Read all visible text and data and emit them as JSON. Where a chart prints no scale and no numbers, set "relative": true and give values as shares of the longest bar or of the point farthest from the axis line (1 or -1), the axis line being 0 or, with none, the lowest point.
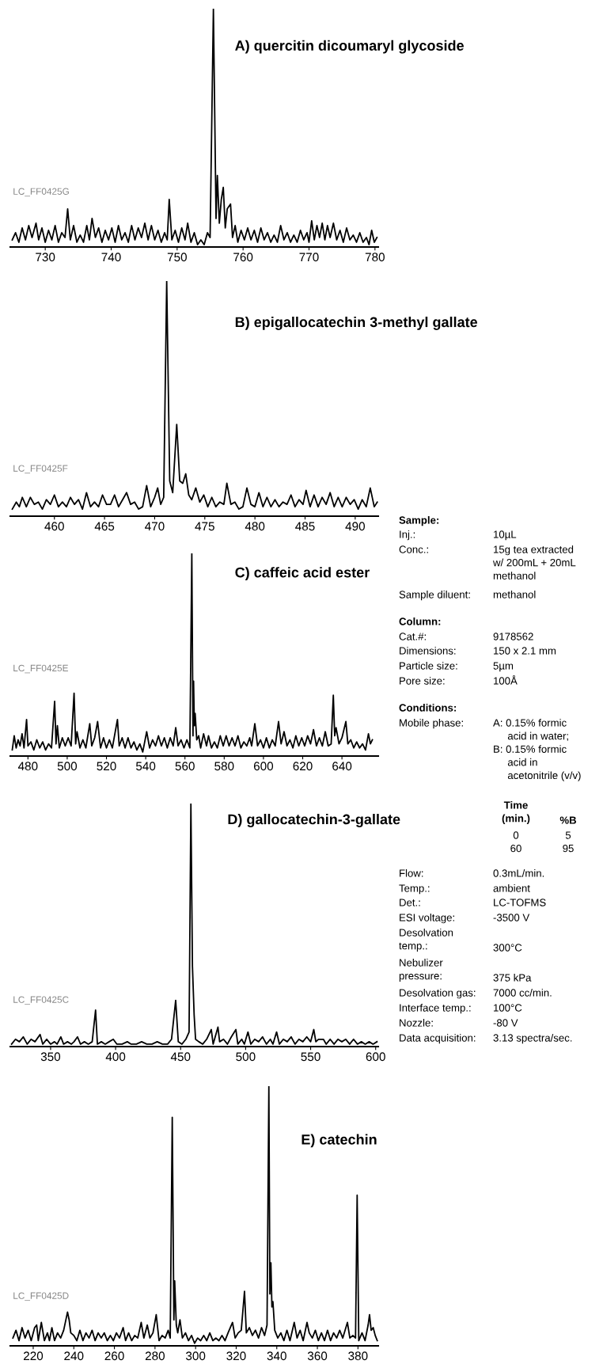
{
  "chart_data": [
    {
      "type": "line",
      "title": "A) quercitin dicoumaryl glycoside",
      "relative": true,
      "tick_labels": "x",
      "xlim": [
        724.7,
        780.5
      ],
      "xticks": [
        730,
        740,
        750,
        760,
        770,
        780
      ],
      "annotations": [
        "LC_FF0425G"
      ],
      "x": [
        725.0,
        725.5,
        726.0,
        726.5,
        727.0,
        727.5,
        728.0,
        728.6,
        729.0,
        729.5,
        730.0,
        730.5,
        731.0,
        731.5,
        732.0,
        732.5,
        733.0,
        733.4,
        733.8,
        734.3,
        734.8,
        735.3,
        735.8,
        736.3,
        736.7,
        737.1,
        737.6,
        738.1,
        738.6,
        739.1,
        739.6,
        740.1,
        740.6,
        741.1,
        741.6,
        742.1,
        742.6,
        743.1,
        743.6,
        744.1,
        744.6,
        745.1,
        745.6,
        746.1,
        746.6,
        747.1,
        747.6,
        748.1,
        748.5,
        748.8,
        749.2,
        749.7,
        750.2,
        750.7,
        751.2,
        751.6,
        752.1,
        752.6,
        753.1,
        753.6,
        754.1,
        754.6,
        755.0,
        755.5,
        755.9,
        756.1,
        756.4,
        756.7,
        757.0,
        757.3,
        757.6,
        758.1,
        758.4,
        758.8,
        759.2,
        759.7,
        760.2,
        760.7,
        761.2,
        761.7,
        762.2,
        762.7,
        763.2,
        763.7,
        764.2,
        764.7,
        765.2,
        765.7,
        766.2,
        766.7,
        767.2,
        767.7,
        768.2,
        768.7,
        769.2,
        769.7,
        770.0,
        770.4,
        770.8,
        771.2,
        771.6,
        772.0,
        772.4,
        772.8,
        773.2,
        773.7,
        774.2,
        774.7,
        775.2,
        775.7,
        776.2,
        776.7,
        777.2,
        777.7,
        778.2,
        778.7,
        779.1,
        779.5,
        779.9,
        780.3
      ],
      "series": [
        {
          "color": "#000000",
          "values": [
            0.03,
            0.06,
            0.02,
            0.08,
            0.03,
            0.09,
            0.04,
            0.1,
            0.03,
            0.08,
            0.02,
            0.07,
            0.03,
            0.09,
            0.02,
            0.06,
            0.04,
            0.16,
            0.03,
            0.09,
            0.02,
            0.05,
            0.02,
            0.09,
            0.03,
            0.12,
            0.04,
            0.08,
            0.02,
            0.07,
            0.03,
            0.08,
            0.02,
            0.09,
            0.03,
            0.06,
            0.02,
            0.09,
            0.03,
            0.08,
            0.04,
            0.1,
            0.03,
            0.09,
            0.03,
            0.07,
            0.02,
            0.06,
            0.03,
            0.2,
            0.03,
            0.07,
            0.02,
            0.08,
            0.03,
            0.1,
            0.02,
            0.06,
            0.01,
            0.03,
            0.01,
            0.06,
            0.04,
            1.0,
            0.12,
            0.3,
            0.1,
            0.2,
            0.25,
            0.08,
            0.16,
            0.18,
            0.04,
            0.09,
            0.02,
            0.07,
            0.03,
            0.08,
            0.03,
            0.07,
            0.02,
            0.08,
            0.03,
            0.06,
            0.02,
            0.05,
            0.02,
            0.09,
            0.03,
            0.06,
            0.02,
            0.05,
            0.02,
            0.07,
            0.03,
            0.06,
            0.02,
            0.11,
            0.03,
            0.09,
            0.04,
            0.1,
            0.03,
            0.09,
            0.04,
            0.1,
            0.03,
            0.07,
            0.02,
            0.08,
            0.03,
            0.05,
            0.02,
            0.06,
            0.02,
            0.04,
            0.01,
            0.07,
            0.02,
            0.04
          ]
        }
      ]
    },
    {
      "type": "line",
      "title": "B) epigallocatechin 3-methyl gallate",
      "relative": true,
      "tick_labels": "x",
      "xlim": [
        455.6,
        492.3
      ],
      "xticks": [
        460,
        465,
        470,
        475,
        480,
        485,
        490
      ],
      "annotations": [
        "LC_FF0425F"
      ],
      "x": [
        455.8,
        456.2,
        456.5,
        456.8,
        457.2,
        457.6,
        458.0,
        458.4,
        458.8,
        459.2,
        459.6,
        460.0,
        460.4,
        460.8,
        461.2,
        461.6,
        462.0,
        462.4,
        462.8,
        463.2,
        463.6,
        464.0,
        464.4,
        464.8,
        465.2,
        465.6,
        466.0,
        466.4,
        466.8,
        467.2,
        467.6,
        468.0,
        468.4,
        468.8,
        469.2,
        469.6,
        470.0,
        470.3,
        470.6,
        470.9,
        471.2,
        471.5,
        471.8,
        472.2,
        472.5,
        472.8,
        473.1,
        473.4,
        473.7,
        474.1,
        474.5,
        474.9,
        475.3,
        475.7,
        476.1,
        476.5,
        476.9,
        477.2,
        477.6,
        478.0,
        478.4,
        478.8,
        479.2,
        479.6,
        480.0,
        480.4,
        480.8,
        481.2,
        481.6,
        482.0,
        482.4,
        482.8,
        483.2,
        483.6,
        484.0,
        484.4,
        484.8,
        485.1,
        485.5,
        485.9,
        486.3,
        486.7,
        487.1,
        487.5,
        487.9,
        488.3,
        488.7,
        489.1,
        489.5,
        489.9,
        490.3,
        490.7,
        491.1,
        491.5,
        491.9,
        492.2
      ],
      "series": [
        {
          "color": "#000000",
          "values": [
            0.03,
            0.06,
            0.04,
            0.08,
            0.04,
            0.08,
            0.05,
            0.06,
            0.03,
            0.07,
            0.05,
            0.09,
            0.04,
            0.06,
            0.04,
            0.08,
            0.05,
            0.07,
            0.03,
            0.1,
            0.04,
            0.06,
            0.04,
            0.09,
            0.05,
            0.05,
            0.09,
            0.04,
            0.07,
            0.1,
            0.05,
            0.06,
            0.03,
            0.04,
            0.13,
            0.04,
            0.08,
            0.12,
            0.05,
            0.08,
            1.0,
            0.15,
            0.1,
            0.39,
            0.15,
            0.14,
            0.18,
            0.09,
            0.07,
            0.12,
            0.06,
            0.09,
            0.04,
            0.08,
            0.04,
            0.06,
            0.05,
            0.14,
            0.05,
            0.06,
            0.03,
            0.04,
            0.12,
            0.05,
            0.04,
            0.1,
            0.04,
            0.08,
            0.04,
            0.07,
            0.04,
            0.06,
            0.05,
            0.09,
            0.04,
            0.07,
            0.05,
            0.11,
            0.04,
            0.09,
            0.04,
            0.08,
            0.05,
            0.1,
            0.04,
            0.08,
            0.04,
            0.08,
            0.05,
            0.07,
            0.03,
            0.07,
            0.04,
            0.12,
            0.04,
            0.06
          ]
        }
      ]
    },
    {
      "type": "line",
      "title": "C) caffeic acid ester",
      "relative": true,
      "tick_labels": "x",
      "xlim": [
        471,
        658.5
      ],
      "xticks": [
        480,
        500,
        520,
        540,
        560,
        580,
        600,
        620,
        640
      ],
      "annotations": [
        "LC_FF0425E"
      ],
      "x": [
        472,
        473,
        474,
        475,
        476,
        477,
        478,
        479.3,
        480,
        481.5,
        483,
        484.5,
        486,
        487.5,
        489,
        490.5,
        492,
        493.6,
        494.3,
        495,
        496,
        497.5,
        499,
        500.5,
        502,
        503.5,
        504.3,
        505,
        506.5,
        508,
        509.5,
        511.5,
        512.5,
        514,
        515.5,
        517,
        518.5,
        520,
        521.5,
        523,
        525.6,
        526.5,
        528,
        529.5,
        531,
        532.5,
        534,
        535.5,
        537,
        538.5,
        540.5,
        542,
        543.5,
        545,
        546.5,
        548,
        549.5,
        551,
        552.5,
        554,
        555.3,
        556.5,
        558,
        559.5,
        561,
        562.5,
        563.5,
        564.1,
        564.4,
        564.8,
        565.2,
        566,
        567,
        568,
        569.5,
        571,
        572,
        573.5,
        575,
        576.5,
        578,
        579.5,
        581,
        582.5,
        584,
        585.5,
        587,
        588.5,
        590,
        591.5,
        593,
        594,
        595.6,
        597,
        598.5,
        600,
        601.5,
        603,
        604.5,
        606,
        607.7,
        609,
        610.5,
        612,
        613.5,
        615,
        616.5,
        618,
        619.5,
        621,
        622.5,
        624,
        625.5,
        627,
        628.5,
        630,
        631.5,
        633,
        634.5,
        635.6,
        636.3,
        637,
        638.5,
        640,
        642,
        643,
        644.5,
        646,
        647.5,
        649,
        650.5,
        652,
        653.5,
        654.5,
        655.5
      ],
      "series": [
        {
          "color": "#000000",
          "values": [
            0.03,
            0.1,
            0.04,
            0.08,
            0.05,
            0.11,
            0.04,
            0.18,
            0.05,
            0.07,
            0.03,
            0.08,
            0.04,
            0.07,
            0.03,
            0.06,
            0.04,
            0.27,
            0.06,
            0.15,
            0.04,
            0.09,
            0.05,
            0.09,
            0.05,
            0.31,
            0.06,
            0.12,
            0.04,
            0.08,
            0.04,
            0.16,
            0.05,
            0.09,
            0.17,
            0.04,
            0.09,
            0.04,
            0.08,
            0.04,
            0.18,
            0.05,
            0.09,
            0.04,
            0.09,
            0.04,
            0.07,
            0.03,
            0.06,
            0.02,
            0.12,
            0.04,
            0.08,
            0.05,
            0.1,
            0.05,
            0.09,
            0.04,
            0.09,
            0.05,
            0.14,
            0.05,
            0.08,
            0.04,
            0.08,
            0.04,
            1.0,
            0.1,
            0.37,
            0.15,
            0.21,
            0.08,
            0.1,
            0.04,
            0.11,
            0.05,
            0.1,
            0.04,
            0.07,
            0.04,
            0.1,
            0.05,
            0.1,
            0.05,
            0.09,
            0.05,
            0.1,
            0.04,
            0.07,
            0.05,
            0.09,
            0.05,
            0.16,
            0.05,
            0.08,
            0.04,
            0.09,
            0.04,
            0.08,
            0.05,
            0.17,
            0.06,
            0.12,
            0.05,
            0.08,
            0.04,
            0.1,
            0.05,
            0.09,
            0.05,
            0.1,
            0.06,
            0.13,
            0.05,
            0.09,
            0.05,
            0.12,
            0.05,
            0.06,
            0.3,
            0.1,
            0.14,
            0.06,
            0.09,
            0.17,
            0.06,
            0.08,
            0.04,
            0.07,
            0.04,
            0.06,
            0.03,
            0.11,
            0.06,
            0.08
          ]
        }
      ]
    },
    {
      "type": "line",
      "title": "D) gallocatechin-3-gallate",
      "relative": true,
      "tick_labels": "x",
      "xlim": [
        319,
        602
      ],
      "xticks": [
        350,
        400,
        450,
        500,
        550,
        600
      ],
      "annotations": [
        "LC_FF0425C"
      ],
      "x": [
        320,
        323,
        326,
        329,
        332,
        335,
        338,
        341.9,
        344,
        347,
        350,
        353,
        355,
        357.9,
        360,
        363,
        366,
        368,
        370.7,
        373,
        376,
        379,
        382,
        384.6,
        386,
        389,
        392,
        395,
        398.2,
        401,
        405,
        409,
        412,
        416,
        420,
        424,
        428,
        432,
        436,
        440,
        443,
        446.2,
        448.2,
        451,
        454,
        456.5,
        457.9,
        459.1,
        460.4,
        461.5,
        464,
        467,
        470,
        473.6,
        475,
        478.7,
        480,
        483,
        486,
        489,
        492.5,
        494,
        497,
        499,
        501.8,
        504,
        507,
        510,
        513,
        516,
        519,
        521,
        523.8,
        526,
        529,
        532,
        535,
        538,
        541,
        544,
        547,
        550,
        552.4,
        554,
        556,
        559.8,
        562,
        565,
        568,
        571,
        574,
        577,
        580,
        583,
        586,
        589,
        592,
        595,
        598,
        601
      ],
      "series": [
        {
          "color": "#000000",
          "values": [
            0.01,
            0.03,
            0.02,
            0.04,
            0.01,
            0.03,
            0.02,
            0.05,
            0.01,
            0.03,
            0.01,
            0.02,
            0.01,
            0.04,
            0.01,
            0.02,
            0.01,
            0.02,
            0.04,
            0.01,
            0.02,
            0.01,
            0.02,
            0.15,
            0.01,
            0.02,
            0.01,
            0.02,
            0.03,
            0.01,
            0.01,
            0.02,
            0.01,
            0.01,
            0.02,
            0.01,
            0.01,
            0.02,
            0.01,
            0.01,
            0.03,
            0.19,
            0.02,
            0.01,
            0.03,
            0.06,
            1.0,
            0.33,
            0.13,
            0.03,
            0.02,
            0.01,
            0.03,
            0.07,
            0.01,
            0.08,
            0.02,
            0.03,
            0.01,
            0.04,
            0.07,
            0.01,
            0.03,
            0.01,
            0.06,
            0.01,
            0.03,
            0.02,
            0.04,
            0.01,
            0.03,
            0.01,
            0.06,
            0.01,
            0.03,
            0.02,
            0.04,
            0.01,
            0.03,
            0.02,
            0.04,
            0.02,
            0.07,
            0.02,
            0.03,
            0.03,
            0.01,
            0.03,
            0.01,
            0.03,
            0.02,
            0.03,
            0.01,
            0.03,
            0.01,
            0.02,
            0.01,
            0.02,
            0.01,
            0.02
          ]
        }
      ]
    },
    {
      "type": "line",
      "title": "E) catechin",
      "relative": true,
      "tick_labels": "x",
      "xlim": [
        208.7,
        390
      ],
      "xticks": [
        220,
        240,
        260,
        280,
        300,
        320,
        340,
        360,
        380
      ],
      "annotations": [
        "LC_FF0425D"
      ],
      "x": [
        210,
        211.5,
        213,
        214.5,
        216,
        217.5,
        219,
        220.7,
        221.7,
        222.5,
        224,
        225.5,
        227,
        228,
        229.2,
        230.5,
        232,
        233.5,
        235,
        236.9,
        237.7,
        238.5,
        240,
        241.5,
        243,
        244.5,
        246,
        247.5,
        249,
        250.5,
        252,
        253.5,
        255,
        256.5,
        258,
        259.5,
        261,
        262.5,
        264.3,
        265.5,
        267,
        268.5,
        270,
        271.5,
        273.2,
        274.5,
        276.2,
        277.5,
        279,
        280.6,
        282,
        283.5,
        285,
        286.5,
        287.5,
        288.5,
        289.3,
        289.7,
        290.5,
        291.2,
        292.3,
        293.5,
        295,
        296.5,
        298,
        299.5,
        301,
        302.5,
        304,
        305.5,
        307,
        308.5,
        310,
        311.5,
        313,
        314.5,
        316,
        318.2,
        319.5,
        321,
        322.5,
        324.1,
        325,
        326.5,
        328,
        329.5,
        331,
        332.5,
        334,
        335.2,
        336.1,
        336.6,
        337.1,
        337.6,
        338.1,
        339,
        340.5,
        342,
        343.5,
        345,
        346.5,
        348.6,
        350,
        351.5,
        353,
        354.9,
        356,
        357.5,
        359,
        360.5,
        362,
        363.5,
        365,
        366.5,
        368,
        369.5,
        371,
        372.5,
        374.8,
        376,
        377.5,
        378.8,
        379.6,
        380.4,
        382,
        383.5,
        385,
        385.7,
        386.5,
        387.5,
        388.5,
        389.5
      ],
      "series": [
        {
          "color": "#000000",
          "values": [
            0.03,
            0.06,
            0.02,
            0.07,
            0.03,
            0.06,
            0.02,
            0.07,
            0.08,
            0.02,
            0.09,
            0.02,
            0.05,
            0.02,
            0.07,
            0.02,
            0.05,
            0.03,
            0.06,
            0.13,
            0.1,
            0.05,
            0.04,
            0.02,
            0.06,
            0.02,
            0.05,
            0.03,
            0.06,
            0.02,
            0.05,
            0.03,
            0.05,
            0.02,
            0.04,
            0.02,
            0.05,
            0.03,
            0.07,
            0.02,
            0.05,
            0.02,
            0.04,
            0.03,
            0.09,
            0.03,
            0.08,
            0.03,
            0.05,
            0.12,
            0.02,
            0.04,
            0.03,
            0.06,
            0.03,
            0.88,
            0.1,
            0.25,
            0.08,
            0.05,
            0.1,
            0.03,
            0.05,
            0.02,
            0.04,
            0.01,
            0.03,
            0.02,
            0.04,
            0.02,
            0.05,
            0.02,
            0.03,
            0.02,
            0.04,
            0.02,
            0.05,
            0.09,
            0.03,
            0.05,
            0.06,
            0.21,
            0.05,
            0.07,
            0.04,
            0.06,
            0.03,
            0.07,
            0.04,
            0.08,
            1.0,
            0.2,
            0.32,
            0.15,
            0.17,
            0.06,
            0.03,
            0.05,
            0.02,
            0.06,
            0.02,
            0.09,
            0.03,
            0.06,
            0.02,
            0.09,
            0.05,
            0.03,
            0.06,
            0.02,
            0.05,
            0.02,
            0.06,
            0.02,
            0.05,
            0.03,
            0.06,
            0.03,
            0.09,
            0.03,
            0.04,
            0.03,
            0.58,
            0.02,
            0.05,
            0.02,
            0.08,
            0.12,
            0.06,
            0.07,
            0.04,
            0.02
          ]
        }
      ]
    },
    {
      "type": "other",
      "annotations": [
        "Sample:",
        "Inj.:",
        "10µL",
        "Conc.:",
        "15g tea extracted\nw/ 200mL + 20mL\nmethanol",
        "Sample diluent:",
        "methanol",
        "Column:",
        "Cat.#:",
        "9178562",
        "Dimensions:",
        "150 x 2.1 mm",
        "Particle size:",
        "5µm",
        "Pore size:",
        "100Å",
        "Conditions:",
        "Mobile phase:",
        "A: 0.15% formic\n     acid in water;\nB: 0.15% formic\n     acid in\n     acetonitrile (v/v)",
        "Time\n(min.)",
        "%B",
        "0\n60",
        "5\n95",
        "Flow:",
        "0.3mL/min.",
        "Temp.:",
        "ambient",
        "Det.:",
        "LC-TOFMS",
        "ESI voltage:",
        "-3500 V",
        "Desolvation\ntemp.:",
        "300°C",
        "Nebulizer\npressure:",
        "375 kPa",
        "Desolvation gas:",
        "7000 cc/min.",
        "Interface temp.:",
        "100°C",
        "Nozzle:",
        "-80 V",
        "Data acquisition:",
        "3.13 spectra/sec."
      ]
    }
  ]
}
